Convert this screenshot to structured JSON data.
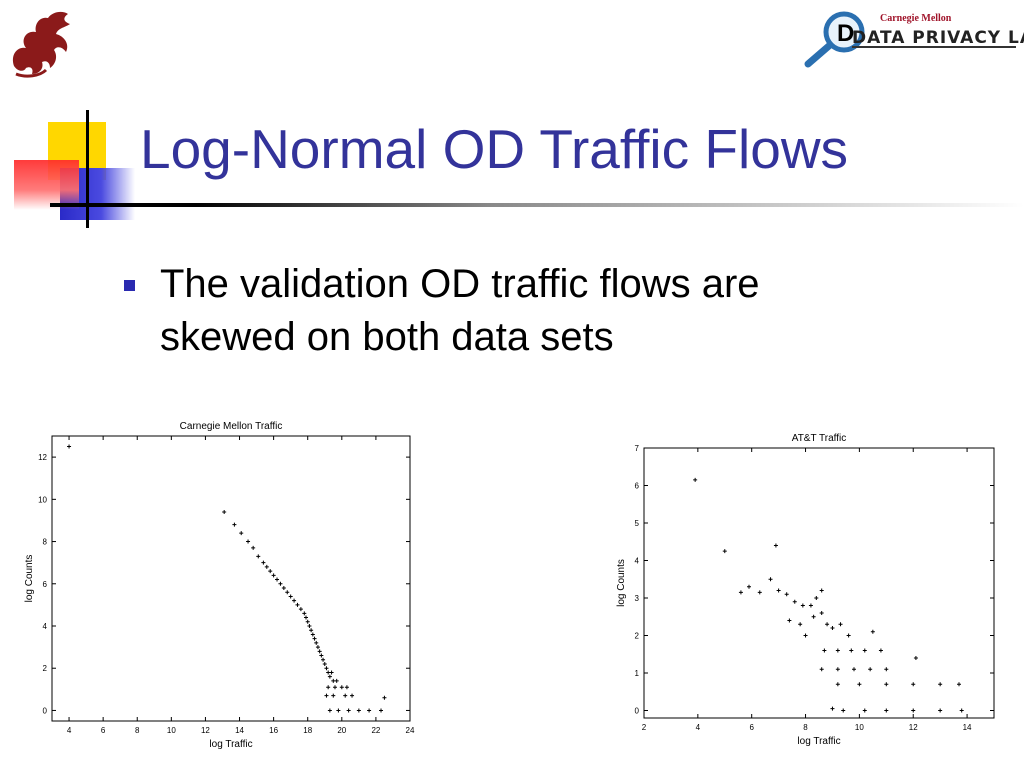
{
  "slide": {
    "title": "Log-Normal OD Traffic Flows",
    "bullet": "The validation OD traffic flows are skewed on both data sets",
    "colors": {
      "title": "#33339a",
      "bullet": "#2a2ab0",
      "accent_yellow": "#ffd700",
      "accent_red": "#ff2a2a",
      "accent_blue": "#2a2ac8"
    }
  },
  "logos": {
    "left_icon": "dragon-icon",
    "right_institution": "Carnegie Mellon",
    "right_lab": "DATA PRIVACY LAB",
    "right_icon": "magnifier-icon"
  },
  "chart_data": [
    {
      "type": "scatter",
      "title": "Carnegie Mellon Traffic",
      "xlabel": "log Traffic",
      "ylabel": "log Counts",
      "xlim": [
        3,
        24
      ],
      "ylim": [
        -0.5,
        13
      ],
      "xticks": [
        4,
        6,
        8,
        10,
        12,
        14,
        16,
        18,
        20,
        22,
        24
      ],
      "yticks": [
        0,
        2,
        4,
        6,
        8,
        10,
        12
      ],
      "points": [
        [
          4.0,
          12.5
        ],
        [
          13.1,
          9.4
        ],
        [
          13.7,
          8.8
        ],
        [
          14.1,
          8.4
        ],
        [
          14.5,
          8.0
        ],
        [
          14.8,
          7.7
        ],
        [
          15.1,
          7.3
        ],
        [
          15.4,
          7.0
        ],
        [
          15.6,
          6.8
        ],
        [
          15.8,
          6.6
        ],
        [
          16.0,
          6.4
        ],
        [
          16.2,
          6.2
        ],
        [
          16.4,
          6.0
        ],
        [
          16.6,
          5.8
        ],
        [
          16.8,
          5.6
        ],
        [
          17.0,
          5.4
        ],
        [
          17.2,
          5.2
        ],
        [
          17.4,
          5.0
        ],
        [
          17.6,
          4.8
        ],
        [
          17.8,
          4.6
        ],
        [
          17.9,
          4.4
        ],
        [
          18.0,
          4.2
        ],
        [
          18.1,
          4.0
        ],
        [
          18.2,
          3.8
        ],
        [
          18.3,
          3.6
        ],
        [
          18.4,
          3.4
        ],
        [
          18.5,
          3.2
        ],
        [
          18.6,
          3.0
        ],
        [
          18.7,
          2.8
        ],
        [
          18.8,
          2.6
        ],
        [
          18.9,
          2.4
        ],
        [
          19.0,
          2.2
        ],
        [
          19.1,
          2.0
        ],
        [
          19.2,
          1.8
        ],
        [
          19.4,
          1.8
        ],
        [
          19.3,
          1.6
        ],
        [
          19.5,
          1.4
        ],
        [
          19.7,
          1.4
        ],
        [
          19.2,
          1.1
        ],
        [
          19.6,
          1.1
        ],
        [
          20.0,
          1.1
        ],
        [
          20.3,
          1.1
        ],
        [
          19.1,
          0.7
        ],
        [
          19.5,
          0.7
        ],
        [
          20.2,
          0.7
        ],
        [
          20.6,
          0.7
        ],
        [
          19.3,
          0.0
        ],
        [
          19.8,
          0.0
        ],
        [
          20.4,
          0.0
        ],
        [
          21.0,
          0.0
        ],
        [
          21.6,
          0.0
        ],
        [
          22.3,
          0.0
        ],
        [
          22.5,
          0.6
        ]
      ]
    },
    {
      "type": "scatter",
      "title": "AT&T Traffic",
      "xlabel": "log Traffic",
      "ylabel": "log Counts",
      "xlim": [
        2,
        15
      ],
      "ylim": [
        -0.2,
        7
      ],
      "xticks": [
        2,
        4,
        6,
        8,
        10,
        12,
        14
      ],
      "yticks": [
        0,
        1,
        2,
        3,
        4,
        5,
        6,
        7
      ],
      "points": [
        [
          3.9,
          6.15
        ],
        [
          5.0,
          4.25
        ],
        [
          6.9,
          4.4
        ],
        [
          5.6,
          3.15
        ],
        [
          5.9,
          3.3
        ],
        [
          6.3,
          3.15
        ],
        [
          6.7,
          3.5
        ],
        [
          7.0,
          3.2
        ],
        [
          7.3,
          3.1
        ],
        [
          7.6,
          2.9
        ],
        [
          7.9,
          2.8
        ],
        [
          8.2,
          2.8
        ],
        [
          8.6,
          3.2
        ],
        [
          8.4,
          3.0
        ],
        [
          7.4,
          2.4
        ],
        [
          7.8,
          2.3
        ],
        [
          8.0,
          2.0
        ],
        [
          8.3,
          2.5
        ],
        [
          8.6,
          2.6
        ],
        [
          8.8,
          2.3
        ],
        [
          9.0,
          2.2
        ],
        [
          9.3,
          2.3
        ],
        [
          9.6,
          2.0
        ],
        [
          10.5,
          2.1
        ],
        [
          8.7,
          1.6
        ],
        [
          9.2,
          1.6
        ],
        [
          9.7,
          1.6
        ],
        [
          10.2,
          1.6
        ],
        [
          10.8,
          1.6
        ],
        [
          8.6,
          1.1
        ],
        [
          9.2,
          1.1
        ],
        [
          9.8,
          1.1
        ],
        [
          10.4,
          1.1
        ],
        [
          11.0,
          1.1
        ],
        [
          12.1,
          1.4
        ],
        [
          9.2,
          0.7
        ],
        [
          10.0,
          0.7
        ],
        [
          11.0,
          0.7
        ],
        [
          12.0,
          0.7
        ],
        [
          13.0,
          0.7
        ],
        [
          13.7,
          0.7
        ],
        [
          9.4,
          0.0
        ],
        [
          10.2,
          0.0
        ],
        [
          11.0,
          0.0
        ],
        [
          12.0,
          0.0
        ],
        [
          13.0,
          0.0
        ],
        [
          13.8,
          0.0
        ],
        [
          9.0,
          0.05
        ]
      ]
    }
  ]
}
